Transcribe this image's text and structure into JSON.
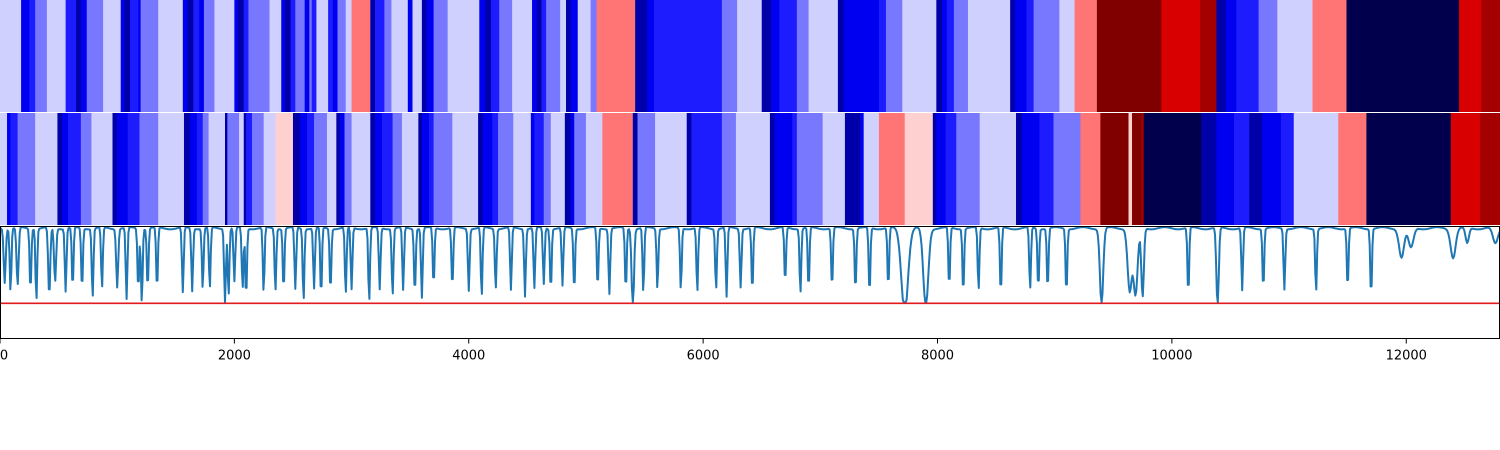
{
  "chart_data": [
    {
      "type": "heatmap",
      "name": "segmentation-row-1",
      "x_range": [
        0,
        12800
      ],
      "color_scale": {
        "0": "#00004c",
        "1": "#0000a8",
        "2": "#0000f0",
        "3": "#1c1cff",
        "4": "#7878ff",
        "5": "#d0d0ff",
        "6": "#ffd0d0",
        "7": "#ff7474",
        "8": "#d80000",
        "9": "#a40000",
        "10": "#800000"
      },
      "segments": [
        [
          0,
          5
        ],
        [
          180,
          2
        ],
        [
          250,
          3
        ],
        [
          300,
          4
        ],
        [
          400,
          5
        ],
        [
          560,
          3
        ],
        [
          650,
          1
        ],
        [
          690,
          2
        ],
        [
          740,
          4
        ],
        [
          880,
          5
        ],
        [
          1030,
          2
        ],
        [
          1060,
          1
        ],
        [
          1110,
          3
        ],
        [
          1180,
          2
        ],
        [
          1200,
          4
        ],
        [
          1350,
          5
        ],
        [
          1560,
          2
        ],
        [
          1600,
          1
        ],
        [
          1650,
          3
        ],
        [
          1700,
          2
        ],
        [
          1740,
          4
        ],
        [
          1830,
          5
        ],
        [
          2000,
          2
        ],
        [
          2030,
          1
        ],
        [
          2080,
          3
        ],
        [
          2120,
          4
        ],
        [
          2300,
          5
        ],
        [
          2400,
          2
        ],
        [
          2430,
          1
        ],
        [
          2480,
          3
        ],
        [
          2520,
          4
        ],
        [
          2600,
          2
        ],
        [
          2640,
          4
        ],
        [
          2660,
          3
        ],
        [
          2700,
          5
        ],
        [
          2800,
          3
        ],
        [
          2840,
          2
        ],
        [
          2880,
          4
        ],
        [
          2950,
          5
        ],
        [
          3000,
          7
        ],
        [
          3160,
          1
        ],
        [
          3200,
          3
        ],
        [
          3280,
          4
        ],
        [
          3340,
          5
        ],
        [
          3480,
          2
        ],
        [
          3520,
          5
        ],
        [
          3600,
          1
        ],
        [
          3640,
          2
        ],
        [
          3700,
          4
        ],
        [
          3820,
          5
        ],
        [
          4090,
          2
        ],
        [
          4140,
          1
        ],
        [
          4190,
          3
        ],
        [
          4260,
          4
        ],
        [
          4370,
          5
        ],
        [
          4540,
          2
        ],
        [
          4580,
          1
        ],
        [
          4620,
          3
        ],
        [
          4660,
          4
        ],
        [
          4780,
          5
        ],
        [
          4830,
          1
        ],
        [
          4870,
          2
        ],
        [
          4930,
          5
        ],
        [
          5040,
          4
        ],
        [
          5090,
          7
        ],
        [
          5420,
          1
        ],
        [
          5520,
          2
        ],
        [
          5580,
          3
        ],
        [
          6160,
          4
        ],
        [
          6290,
          5
        ],
        [
          6500,
          1
        ],
        [
          6580,
          2
        ],
        [
          6650,
          3
        ],
        [
          6800,
          4
        ],
        [
          6900,
          5
        ],
        [
          7150,
          1
        ],
        [
          7200,
          2
        ],
        [
          7500,
          3
        ],
        [
          7560,
          4
        ],
        [
          7700,
          5
        ],
        [
          7990,
          1
        ],
        [
          8040,
          2
        ],
        [
          8080,
          3
        ],
        [
          8140,
          4
        ],
        [
          8260,
          5
        ],
        [
          8620,
          1
        ],
        [
          8660,
          2
        ],
        [
          8760,
          3
        ],
        [
          8820,
          4
        ],
        [
          9040,
          5
        ],
        [
          9170,
          7
        ],
        [
          9360,
          10
        ],
        [
          9910,
          8
        ],
        [
          10240,
          9
        ],
        [
          10380,
          1
        ],
        [
          10460,
          2
        ],
        [
          10550,
          3
        ],
        [
          10740,
          4
        ],
        [
          10900,
          5
        ],
        [
          11200,
          7
        ],
        [
          11490,
          0
        ],
        [
          12450,
          8
        ],
        [
          12640,
          9
        ],
        [
          12800,
          9
        ]
      ]
    },
    {
      "type": "heatmap",
      "name": "segmentation-row-2",
      "x_range": [
        0,
        12800
      ],
      "segments": [
        [
          0,
          5
        ],
        [
          60,
          2
        ],
        [
          90,
          3
        ],
        [
          150,
          4
        ],
        [
          300,
          5
        ],
        [
          490,
          1
        ],
        [
          530,
          2
        ],
        [
          580,
          3
        ],
        [
          690,
          4
        ],
        [
          780,
          5
        ],
        [
          960,
          1
        ],
        [
          1000,
          2
        ],
        [
          1090,
          3
        ],
        [
          1190,
          4
        ],
        [
          1350,
          5
        ],
        [
          1570,
          1
        ],
        [
          1620,
          2
        ],
        [
          1680,
          3
        ],
        [
          1730,
          4
        ],
        [
          1780,
          5
        ],
        [
          1920,
          1
        ],
        [
          1940,
          4
        ],
        [
          2040,
          5
        ],
        [
          2080,
          1
        ],
        [
          2100,
          3
        ],
        [
          2150,
          4
        ],
        [
          2250,
          5
        ],
        [
          2350,
          6
        ],
        [
          2500,
          1
        ],
        [
          2560,
          2
        ],
        [
          2620,
          3
        ],
        [
          2680,
          4
        ],
        [
          2790,
          5
        ],
        [
          2870,
          1
        ],
        [
          2900,
          2
        ],
        [
          2940,
          4
        ],
        [
          3000,
          5
        ],
        [
          3160,
          1
        ],
        [
          3200,
          2
        ],
        [
          3260,
          3
        ],
        [
          3350,
          4
        ],
        [
          3430,
          5
        ],
        [
          3570,
          1
        ],
        [
          3600,
          2
        ],
        [
          3660,
          3
        ],
        [
          3700,
          4
        ],
        [
          3860,
          5
        ],
        [
          4080,
          1
        ],
        [
          4120,
          2
        ],
        [
          4200,
          3
        ],
        [
          4250,
          4
        ],
        [
          4380,
          5
        ],
        [
          4530,
          2
        ],
        [
          4560,
          3
        ],
        [
          4640,
          4
        ],
        [
          4700,
          5
        ],
        [
          4820,
          1
        ],
        [
          4870,
          2
        ],
        [
          4900,
          4
        ],
        [
          5000,
          5
        ],
        [
          5140,
          7
        ],
        [
          5400,
          1
        ],
        [
          5440,
          4
        ],
        [
          5590,
          5
        ],
        [
          5860,
          1
        ],
        [
          5900,
          3
        ],
        [
          6160,
          4
        ],
        [
          6280,
          5
        ],
        [
          6570,
          1
        ],
        [
          6610,
          2
        ],
        [
          6760,
          3
        ],
        [
          6800,
          4
        ],
        [
          7020,
          5
        ],
        [
          7210,
          1
        ],
        [
          7340,
          2
        ],
        [
          7370,
          5
        ],
        [
          7500,
          7
        ],
        [
          7720,
          6
        ],
        [
          7960,
          1
        ],
        [
          7990,
          2
        ],
        [
          8070,
          3
        ],
        [
          8160,
          4
        ],
        [
          8360,
          5
        ],
        [
          8670,
          1
        ],
        [
          8720,
          2
        ],
        [
          8870,
          3
        ],
        [
          8990,
          4
        ],
        [
          9220,
          7
        ],
        [
          9390,
          10
        ],
        [
          9630,
          6
        ],
        [
          9660,
          10
        ],
        [
          9740,
          9
        ],
        [
          9760,
          0
        ],
        [
          10250,
          1
        ],
        [
          10380,
          2
        ],
        [
          10530,
          3
        ],
        [
          10660,
          1
        ],
        [
          10770,
          2
        ],
        [
          10930,
          3
        ],
        [
          11040,
          5
        ],
        [
          11420,
          7
        ],
        [
          11660,
          0
        ],
        [
          12380,
          8
        ],
        [
          12630,
          9
        ],
        [
          12800,
          9
        ]
      ]
    },
    {
      "type": "line",
      "name": "signal-panel",
      "xlim": [
        0,
        12800
      ],
      "ylim": [
        0,
        1
      ],
      "xticks": [
        0,
        2000,
        4000,
        6000,
        8000,
        10000,
        12000
      ],
      "threshold": 0.31,
      "line_color": "#1f77b4",
      "threshold_color": "#e31a1c",
      "dips": [
        [
          40,
          0.48,
          12
        ],
        [
          90,
          0.56,
          10
        ],
        [
          150,
          0.52,
          12
        ],
        [
          260,
          0.56,
          10
        ],
        [
          310,
          0.64,
          10
        ],
        [
          420,
          0.62,
          12
        ],
        [
          470,
          0.48,
          12
        ],
        [
          560,
          0.56,
          10
        ],
        [
          620,
          0.55,
          10
        ],
        [
          700,
          0.55,
          10
        ],
        [
          790,
          0.62,
          10
        ],
        [
          870,
          0.55,
          10
        ],
        [
          1000,
          0.52,
          12
        ],
        [
          1080,
          0.64,
          10
        ],
        [
          1180,
          0.55,
          10
        ],
        [
          1210,
          0.66,
          10
        ],
        [
          1260,
          0.54,
          10
        ],
        [
          1340,
          0.56,
          10
        ],
        [
          1560,
          0.58,
          10
        ],
        [
          1640,
          0.56,
          10
        ],
        [
          1730,
          0.54,
          10
        ],
        [
          1790,
          0.55,
          10
        ],
        [
          1920,
          0.7,
          10
        ],
        [
          1950,
          0.6,
          10
        ],
        [
          2000,
          0.48,
          10
        ],
        [
          2070,
          0.55,
          10
        ],
        [
          2100,
          0.62,
          10
        ],
        [
          2250,
          0.58,
          10
        ],
        [
          2350,
          0.56,
          10
        ],
        [
          2420,
          0.55,
          10
        ],
        [
          2520,
          0.55,
          10
        ],
        [
          2590,
          0.64,
          10
        ],
        [
          2680,
          0.54,
          10
        ],
        [
          2740,
          0.62,
          10
        ],
        [
          2820,
          0.56,
          10
        ],
        [
          2950,
          0.6,
          10
        ],
        [
          3000,
          0.55,
          10
        ],
        [
          3150,
          0.66,
          10
        ],
        [
          3240,
          0.55,
          10
        ],
        [
          3350,
          0.6,
          10
        ],
        [
          3440,
          0.56,
          10
        ],
        [
          3540,
          0.58,
          10
        ],
        [
          3600,
          0.62,
          10
        ],
        [
          3700,
          0.52,
          10
        ],
        [
          3860,
          0.54,
          10
        ],
        [
          4000,
          0.55,
          10
        ],
        [
          4110,
          0.62,
          10
        ],
        [
          4230,
          0.54,
          10
        ],
        [
          4360,
          0.56,
          10
        ],
        [
          4480,
          0.6,
          10
        ],
        [
          4560,
          0.54,
          10
        ],
        [
          4640,
          0.5,
          10
        ],
        [
          4700,
          0.55,
          10
        ],
        [
          4800,
          0.52,
          10
        ],
        [
          4900,
          0.56,
          10
        ],
        [
          5100,
          0.54,
          10
        ],
        [
          5200,
          0.58,
          10
        ],
        [
          5340,
          0.56,
          10
        ],
        [
          5400,
          0.72,
          14
        ],
        [
          5490,
          0.58,
          10
        ],
        [
          5610,
          0.54,
          10
        ],
        [
          5810,
          0.55,
          10
        ],
        [
          5950,
          0.58,
          10
        ],
        [
          6110,
          0.54,
          10
        ],
        [
          6200,
          0.62,
          10
        ],
        [
          6320,
          0.52,
          10
        ],
        [
          6420,
          0.58,
          10
        ],
        [
          6700,
          0.5,
          10
        ],
        [
          6830,
          0.58,
          10
        ],
        [
          6900,
          0.56,
          10
        ],
        [
          7100,
          0.54,
          10
        ],
        [
          7300,
          0.56,
          10
        ],
        [
          7420,
          0.6,
          10
        ],
        [
          7580,
          0.54,
          10
        ],
        [
          7720,
          0.74,
          40
        ],
        [
          7900,
          0.7,
          30
        ],
        [
          8100,
          0.54,
          10
        ],
        [
          8220,
          0.58,
          10
        ],
        [
          8350,
          0.56,
          10
        ],
        [
          8540,
          0.6,
          10
        ],
        [
          8790,
          0.56,
          10
        ],
        [
          8860,
          0.54,
          10
        ],
        [
          8940,
          0.55,
          10
        ],
        [
          9100,
          0.58,
          10
        ],
        [
          9400,
          0.68,
          20
        ],
        [
          9640,
          0.56,
          25
        ],
        [
          9690,
          0.6,
          25
        ],
        [
          9750,
          0.62,
          15
        ],
        [
          10140,
          0.6,
          10
        ],
        [
          10390,
          0.72,
          14
        ],
        [
          10600,
          0.56,
          10
        ],
        [
          10780,
          0.54,
          10
        ],
        [
          10960,
          0.54,
          10
        ],
        [
          11230,
          0.56,
          10
        ],
        [
          11500,
          0.54,
          10
        ],
        [
          11700,
          0.6,
          10
        ],
        [
          11960,
          0.26,
          30
        ],
        [
          12040,
          0.18,
          30
        ],
        [
          12400,
          0.26,
          30
        ],
        [
          12520,
          0.14,
          20
        ],
        [
          12760,
          0.14,
          30
        ]
      ]
    }
  ]
}
